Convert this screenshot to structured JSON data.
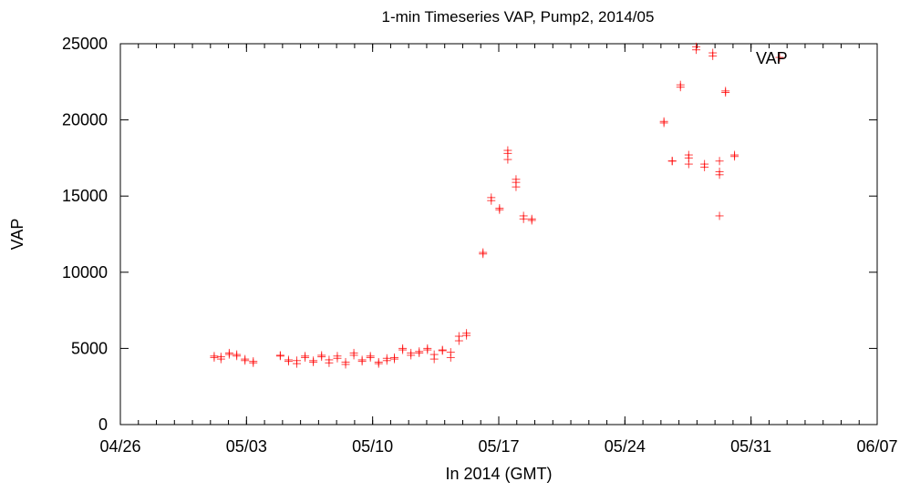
{
  "chart_data": {
    "type": "scatter",
    "title": "1-min Timeseries VAP, Pump2, 2014/05",
    "xlabel": "In 2014 (GMT)",
    "ylabel": "VAP",
    "legend": {
      "position": "top-right",
      "label": "VAP"
    },
    "xaxis": {
      "kind": "date",
      "min": "2014-04-26",
      "max": "2014-06-07",
      "tick_dates": [
        "2014-04-26",
        "2014-05-03",
        "2014-05-10",
        "2014-05-17",
        "2014-05-24",
        "2014-05-31",
        "2014-06-07"
      ],
      "tick_labels": [
        "04/26",
        "05/03",
        "05/10",
        "05/17",
        "05/24",
        "05/31",
        "06/07"
      ]
    },
    "yaxis": {
      "min": 0,
      "max": 25000,
      "ticks": [
        0,
        5000,
        10000,
        15000,
        20000,
        25000
      ],
      "tick_labels": [
        "0",
        "5000",
        "10000",
        "15000",
        "20000",
        "25000"
      ]
    },
    "grid": false,
    "marker": "+",
    "color": "#ff0000",
    "series": [
      {
        "points": [
          [
            "2014-05-01T05:00",
            4500
          ],
          [
            "2014-05-01T05:00",
            4400
          ],
          [
            "2014-05-01T14:00",
            4450
          ],
          [
            "2014-05-01T14:00",
            4300
          ],
          [
            "2014-05-02T01:00",
            4700
          ],
          [
            "2014-05-02T01:00",
            4600
          ],
          [
            "2014-05-02T11:00",
            4600
          ],
          [
            "2014-05-02T11:00",
            4500
          ],
          [
            "2014-05-02T22:00",
            4300
          ],
          [
            "2014-05-02T22:00",
            4200
          ],
          [
            "2014-05-03T09:00",
            4150
          ],
          [
            "2014-05-03T09:00",
            4050
          ],
          [
            "2014-05-04T21:00",
            4550
          ],
          [
            "2014-05-04T21:00",
            4500
          ],
          [
            "2014-05-05T08:00",
            4250
          ],
          [
            "2014-05-05T08:00",
            4150
          ],
          [
            "2014-05-05T19:00",
            4200
          ],
          [
            "2014-05-05T19:00",
            4000
          ],
          [
            "2014-05-06T06:00",
            4500
          ],
          [
            "2014-05-06T06:00",
            4400
          ],
          [
            "2014-05-06T17:00",
            4200
          ],
          [
            "2014-05-06T17:00",
            4100
          ],
          [
            "2014-05-07T04:00",
            4550
          ],
          [
            "2014-05-07T04:00",
            4450
          ],
          [
            "2014-05-07T14:00",
            4250
          ],
          [
            "2014-05-07T14:00",
            4050
          ],
          [
            "2014-05-08T01:00",
            4500
          ],
          [
            "2014-05-08T01:00",
            4350
          ],
          [
            "2014-05-08T12:00",
            4100
          ],
          [
            "2014-05-08T12:00",
            3950
          ],
          [
            "2014-05-08T23:00",
            4700
          ],
          [
            "2014-05-08T23:00",
            4550
          ],
          [
            "2014-05-09T10:00",
            4250
          ],
          [
            "2014-05-09T10:00",
            4150
          ],
          [
            "2014-05-09T21:00",
            4500
          ],
          [
            "2014-05-09T21:00",
            4400
          ],
          [
            "2014-05-10T08:00",
            4100
          ],
          [
            "2014-05-10T08:00",
            4000
          ],
          [
            "2014-05-10T19:00",
            4350
          ],
          [
            "2014-05-10T19:00",
            4200
          ],
          [
            "2014-05-11T05:00",
            4400
          ],
          [
            "2014-05-11T05:00",
            4300
          ],
          [
            "2014-05-11T16:00",
            5000
          ],
          [
            "2014-05-11T16:00",
            4900
          ],
          [
            "2014-05-12T03:00",
            4700
          ],
          [
            "2014-05-12T03:00",
            4550
          ],
          [
            "2014-05-12T14:00",
            4800
          ],
          [
            "2014-05-12T14:00",
            4700
          ],
          [
            "2014-05-13T01:00",
            4900
          ],
          [
            "2014-05-13T01:00",
            5000
          ],
          [
            "2014-05-13T10:00",
            4600
          ],
          [
            "2014-05-13T10:00",
            4300
          ],
          [
            "2014-05-13T21:00",
            4900
          ],
          [
            "2014-05-13T21:00",
            4850
          ],
          [
            "2014-05-14T08:00",
            4750
          ],
          [
            "2014-05-14T08:00",
            4400
          ],
          [
            "2014-05-14T19:00",
            5800
          ],
          [
            "2014-05-14T19:00",
            5500
          ],
          [
            "2014-05-15T05:00",
            6000
          ],
          [
            "2014-05-15T05:00",
            5850
          ],
          [
            "2014-05-16T03:00",
            11300
          ],
          [
            "2014-05-16T03:00",
            11200
          ],
          [
            "2014-05-16T14:00",
            14900
          ],
          [
            "2014-05-16T14:00",
            14700
          ],
          [
            "2014-05-17T01:00",
            14200
          ],
          [
            "2014-05-17T01:00",
            14100
          ],
          [
            "2014-05-17T12:00",
            18000
          ],
          [
            "2014-05-17T12:00",
            17800
          ],
          [
            "2014-05-17T12:00",
            17400
          ],
          [
            "2014-05-17T23:00",
            16100
          ],
          [
            "2014-05-17T23:00",
            15900
          ],
          [
            "2014-05-17T23:00",
            15600
          ],
          [
            "2014-05-18T09:00",
            13700
          ],
          [
            "2014-05-18T09:00",
            13500
          ],
          [
            "2014-05-18T20:00",
            13500
          ],
          [
            "2014-05-18T20:00",
            13400
          ],
          [
            "2014-05-26T04:00",
            19900
          ],
          [
            "2014-05-26T04:00",
            19800
          ],
          [
            "2014-05-26T15:00",
            17300
          ],
          [
            "2014-05-26T15:00",
            17300
          ],
          [
            "2014-05-27T02:00",
            22300
          ],
          [
            "2014-05-27T02:00",
            22150
          ],
          [
            "2014-05-27T13:00",
            17700
          ],
          [
            "2014-05-27T13:00",
            17500
          ],
          [
            "2014-05-27T13:00",
            17100
          ],
          [
            "2014-05-27T23:00",
            24800
          ],
          [
            "2014-05-27T23:00",
            24600
          ],
          [
            "2014-05-28T10:00",
            17100
          ],
          [
            "2014-05-28T10:00",
            16900
          ],
          [
            "2014-05-28T21:00",
            24400
          ],
          [
            "2014-05-28T21:00",
            24200
          ],
          [
            "2014-05-29T06:00",
            17300
          ],
          [
            "2014-05-29T06:00",
            16600
          ],
          [
            "2014-05-29T06:00",
            16400
          ],
          [
            "2014-05-29T06:00",
            13700
          ],
          [
            "2014-05-29T14:00",
            21900
          ],
          [
            "2014-05-29T14:00",
            21800
          ],
          [
            "2014-05-30T02:00",
            17700
          ],
          [
            "2014-05-30T02:00",
            17600
          ],
          [
            "2014-06-01T14:00",
            24100
          ]
        ]
      }
    ]
  }
}
